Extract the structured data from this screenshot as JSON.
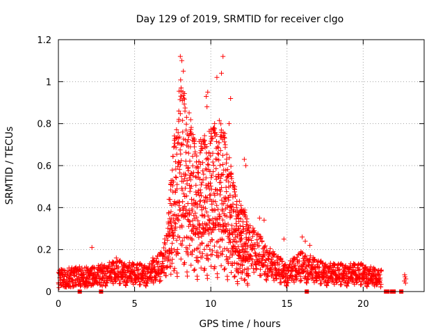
{
  "chart_data": {
    "type": "scatter",
    "title": "Day 129 of 2019, SRMTID for receiver clgo",
    "xlabel": "GPS time / hours",
    "ylabel": "SRMTID / TECUs",
    "xlim": [
      0,
      24
    ],
    "ylim": [
      0,
      1.2
    ],
    "x_ticks": [
      0,
      5,
      10,
      15,
      20
    ],
    "x_tick_labels": [
      "0",
      "5",
      "10",
      "15",
      "20"
    ],
    "y_ticks": [
      0,
      0.2,
      0.4,
      0.6,
      0.8,
      1.0,
      1.2
    ],
    "y_tick_labels": [
      "0",
      "0.2",
      "0.4",
      "0.6",
      "0.8",
      "1",
      "1.2"
    ],
    "grid": true,
    "marker": "plus",
    "series_color": "#ff0000",
    "envelope_description_hours": [
      0,
      22.9
    ],
    "profile": [
      {
        "x": 0.0,
        "y": 0.06
      },
      {
        "x": 1.0,
        "y": 0.07
      },
      {
        "x": 2.0,
        "y": 0.07
      },
      {
        "x": 3.0,
        "y": 0.08
      },
      {
        "x": 4.0,
        "y": 0.09
      },
      {
        "x": 5.0,
        "y": 0.08
      },
      {
        "x": 6.0,
        "y": 0.08
      },
      {
        "x": 6.8,
        "y": 0.12
      },
      {
        "x": 7.3,
        "y": 0.25
      },
      {
        "x": 7.6,
        "y": 0.4
      },
      {
        "x": 8.0,
        "y": 0.55
      },
      {
        "x": 8.5,
        "y": 0.48
      },
      {
        "x": 9.0,
        "y": 0.38
      },
      {
        "x": 9.5,
        "y": 0.4
      },
      {
        "x": 10.0,
        "y": 0.42
      },
      {
        "x": 10.5,
        "y": 0.45
      },
      {
        "x": 11.0,
        "y": 0.4
      },
      {
        "x": 11.5,
        "y": 0.28
      },
      {
        "x": 12.0,
        "y": 0.22
      },
      {
        "x": 13.0,
        "y": 0.18
      },
      {
        "x": 14.0,
        "y": 0.12
      },
      {
        "x": 15.0,
        "y": 0.08
      },
      {
        "x": 16.0,
        "y": 0.12
      },
      {
        "x": 17.0,
        "y": 0.09
      },
      {
        "x": 18.0,
        "y": 0.08
      },
      {
        "x": 19.0,
        "y": 0.08
      },
      {
        "x": 20.0,
        "y": 0.08
      },
      {
        "x": 21.0,
        "y": 0.06
      },
      {
        "x": 21.2,
        "y": 0.06
      }
    ],
    "peaks": [
      {
        "x": 8.0,
        "y": 1.12
      },
      {
        "x": 8.1,
        "y": 1.1
      },
      {
        "x": 8.05,
        "y": 0.97
      },
      {
        "x": 8.2,
        "y": 1.05
      },
      {
        "x": 7.9,
        "y": 0.86
      },
      {
        "x": 9.7,
        "y": 0.93
      },
      {
        "x": 9.8,
        "y": 0.95
      },
      {
        "x": 10.8,
        "y": 1.12
      },
      {
        "x": 10.7,
        "y": 1.04
      },
      {
        "x": 10.4,
        "y": 1.02
      },
      {
        "x": 11.3,
        "y": 0.92
      },
      {
        "x": 11.2,
        "y": 0.8
      },
      {
        "x": 9.75,
        "y": 0.88
      },
      {
        "x": 8.9,
        "y": 0.72
      },
      {
        "x": 10.2,
        "y": 0.78
      },
      {
        "x": 12.2,
        "y": 0.63
      },
      {
        "x": 12.3,
        "y": 0.6
      },
      {
        "x": 13.2,
        "y": 0.35
      },
      {
        "x": 13.5,
        "y": 0.34
      },
      {
        "x": 14.8,
        "y": 0.25
      },
      {
        "x": 16.0,
        "y": 0.26
      },
      {
        "x": 16.2,
        "y": 0.24
      },
      {
        "x": 2.2,
        "y": 0.21
      },
      {
        "x": 3.8,
        "y": 0.16
      },
      {
        "x": 6.2,
        "y": 0.16
      },
      {
        "x": 16.5,
        "y": 0.22
      }
    ],
    "late_points": [
      {
        "x": 22.7,
        "y": 0.05
      },
      {
        "x": 22.75,
        "y": 0.07
      },
      {
        "x": 22.8,
        "y": 0.06
      },
      {
        "x": 22.72,
        "y": 0.08
      },
      {
        "x": 22.78,
        "y": 0.04
      }
    ],
    "zero_points_x": [
      1.4,
      2.8,
      16.3,
      21.5,
      21.6,
      21.9,
      22.0,
      22.5
    ]
  }
}
